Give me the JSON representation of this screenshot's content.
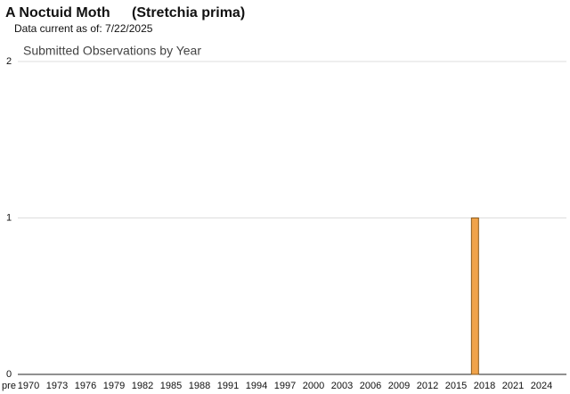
{
  "header": {
    "title": "A Noctuid Moth",
    "scientific_name": "(Stretchia prima)",
    "subtitle": "Data current as of: 7/22/2025"
  },
  "chart_data": {
    "type": "bar",
    "title": "Submitted Observations by Year",
    "categories": [
      "pre",
      "1970",
      null,
      null,
      "1973",
      null,
      null,
      "1976",
      null,
      null,
      "1979",
      null,
      null,
      "1982",
      null,
      null,
      "1985",
      null,
      null,
      "1988",
      null,
      null,
      "1991",
      null,
      null,
      "1994",
      null,
      null,
      "1997",
      null,
      null,
      "2000",
      null,
      null,
      "2003",
      null,
      null,
      "2006",
      null,
      null,
      "2009",
      null,
      null,
      "2012",
      null,
      null,
      "2015",
      null,
      null,
      "2018",
      null,
      null,
      "2021",
      null,
      null,
      "2024",
      null
    ],
    "values": [
      0,
      0,
      0,
      0,
      0,
      0,
      0,
      0,
      0,
      0,
      0,
      0,
      0,
      0,
      0,
      0,
      0,
      0,
      0,
      0,
      0,
      0,
      0,
      0,
      0,
      0,
      0,
      0,
      0,
      0,
      0,
      0,
      0,
      0,
      0,
      0,
      0,
      0,
      0,
      0,
      0,
      0,
      0,
      0,
      0,
      0,
      0,
      0,
      1,
      0,
      0,
      0,
      0,
      0,
      0,
      0,
      0
    ],
    "color": "#f0a34a",
    "ylim": [
      0,
      2
    ],
    "yticks": [
      0,
      1,
      2
    ],
    "grid": true
  }
}
